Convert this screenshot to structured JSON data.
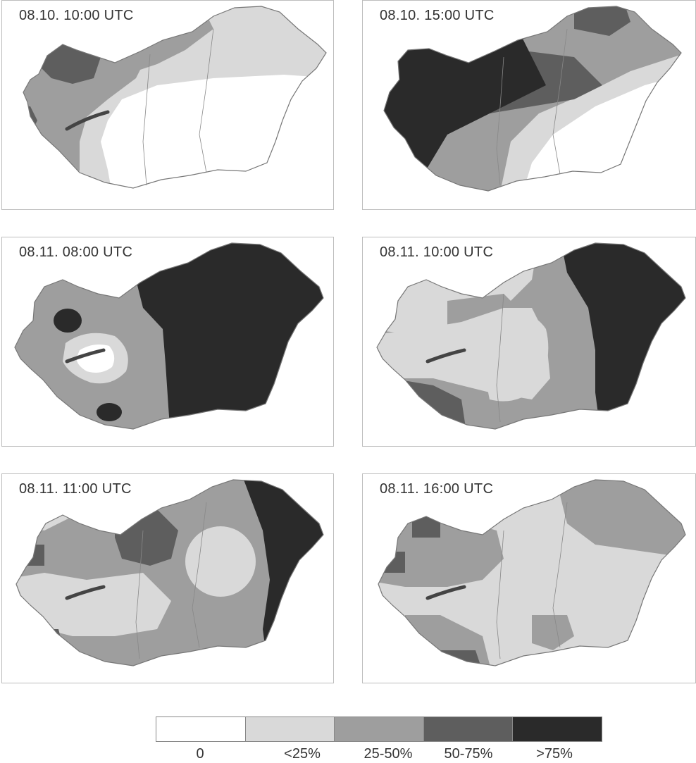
{
  "panels": [
    {
      "label": "08.10. 10:00 UTC"
    },
    {
      "label": "08.10. 15:00 UTC"
    },
    {
      "label": "08.11. 08:00 UTC"
    },
    {
      "label": "08.11. 10:00 UTC"
    },
    {
      "label": "08.11. 11:00 UTC"
    },
    {
      "label": "08.11. 16:00 UTC"
    }
  ],
  "legend": {
    "items": [
      {
        "label": "0",
        "color": "#ffffff"
      },
      {
        "label": "<25%",
        "color": "#d9d9d9"
      },
      {
        "label": "25-50%",
        "color": "#9e9e9e"
      },
      {
        "label": "50-75%",
        "color": "#5e5e5e"
      },
      {
        "label": ">75%",
        "color": "#2a2a2a"
      }
    ]
  }
}
